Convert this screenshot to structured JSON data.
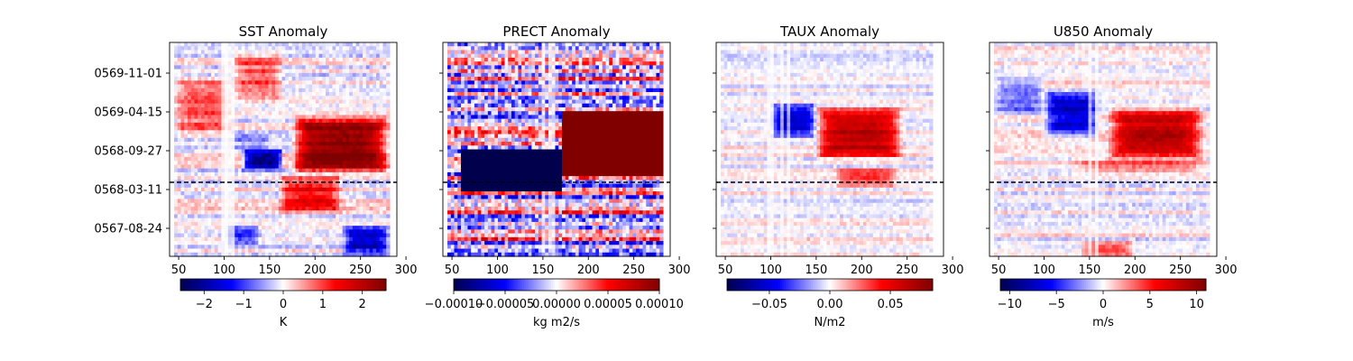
{
  "chart_data": [
    {
      "type": "heatmap",
      "title": "SST Anomaly",
      "xlim": [
        40,
        290
      ],
      "x_ticks": [
        50,
        100,
        150,
        200,
        250,
        300
      ],
      "y_ticks": [
        "0569-11-01",
        "0569-04-15",
        "0568-09-27",
        "0568-03-11",
        "0567-08-24"
      ],
      "y_tick_labels_visible": true,
      "data_x_range": [
        45,
        282
      ],
      "event_line_at": "0568-03-11",
      "colorbar": {
        "label": "K",
        "ticks": [
          "−2",
          "−1",
          "0",
          "1",
          "2"
        ],
        "range": [
          -2.6,
          2.6
        ]
      },
      "colormap": "seismic",
      "features": [
        {
          "x": [
            175,
            282
          ],
          "y": [
            0.38,
            0.66
          ],
          "value": 2.6
        },
        {
          "x": [
            160,
            230
          ],
          "y": [
            0.2,
            0.38
          ],
          "value": 1.4
        },
        {
          "x": [
            110,
            150
          ],
          "y": [
            0.5,
            0.58
          ],
          "value": -0.5
        },
        {
          "x": [
            110,
            165
          ],
          "y": [
            0.72,
            0.96
          ],
          "value": 0.9
        },
        {
          "x": [
            45,
            110
          ],
          "y": [
            0.55,
            0.85
          ],
          "value": 0.9
        },
        {
          "x": [
            120,
            165
          ],
          "y": [
            0.4,
            0.5
          ],
          "value": -2.4
        },
        {
          "x": [
            230,
            282
          ],
          "y": [
            0.0,
            0.15
          ],
          "value": -1.6
        },
        {
          "x": [
            100,
            140
          ],
          "y": [
            0.05,
            0.15
          ],
          "value": -1.0
        }
      ],
      "seed": 11,
      "noise": 0.35,
      "vstripes": [
        100,
        104,
        110
      ]
    },
    {
      "type": "heatmap",
      "title": "PRECT Anomaly",
      "xlim": [
        40,
        290
      ],
      "x_ticks": [
        50,
        100,
        150,
        200,
        250,
        300
      ],
      "y_ticks": [
        "0569-11-01",
        "0569-04-15",
        "0568-09-27",
        "0568-03-11",
        "0567-08-24"
      ],
      "y_tick_labels_visible": false,
      "data_x_range": [
        45,
        282
      ],
      "event_line_at": "0568-03-11",
      "colorbar": {
        "label": "kg m2/s",
        "ticks": [
          "−0.00010",
          "−0.00005",
          "0.00000",
          "0.00005",
          "0.00010"
        ],
        "range": [
          -0.0001,
          0.0001
        ]
      },
      "colormap": "seismic",
      "features": [
        {
          "x": [
            170,
            282
          ],
          "y": [
            0.38,
            0.68
          ],
          "value": 0.9
        },
        {
          "x": [
            60,
            170
          ],
          "y": [
            0.3,
            0.5
          ],
          "value": -0.9
        },
        {
          "x": [
            45,
            160
          ],
          "y": [
            0.55,
            0.95
          ],
          "value": 0.0
        }
      ],
      "seed": 23,
      "noise": 1.1,
      "vstripes": [
        150,
        160
      ]
    },
    {
      "type": "heatmap",
      "title": "TAUX Anomaly",
      "xlim": [
        40,
        290
      ],
      "x_ticks": [
        50,
        100,
        150,
        200,
        250,
        300
      ],
      "y_ticks": [
        "0569-11-01",
        "0569-04-15",
        "0568-09-27",
        "0568-03-11",
        "0567-08-24"
      ],
      "y_tick_labels_visible": false,
      "data_x_range": [
        45,
        278
      ],
      "event_line_at": "0568-03-11",
      "colorbar": {
        "label": "N/m2",
        "ticks": [
          "−0.05",
          "0.00",
          "0.05"
        ],
        "range": [
          -0.085,
          0.085
        ]
      },
      "colormap": "seismic",
      "features": [
        {
          "x": [
            150,
            245
          ],
          "y": [
            0.45,
            0.7
          ],
          "value": 0.065
        },
        {
          "x": [
            100,
            150
          ],
          "y": [
            0.55,
            0.72
          ],
          "value": -0.05
        },
        {
          "x": [
            170,
            240
          ],
          "y": [
            0.32,
            0.42
          ],
          "value": 0.03
        }
      ],
      "seed": 37,
      "noise": 0.25,
      "vstripes": [
        100,
        112,
        120
      ]
    },
    {
      "type": "heatmap",
      "title": "U850 Anomaly",
      "xlim": [
        40,
        290
      ],
      "x_ticks": [
        50,
        100,
        150,
        200,
        250,
        300
      ],
      "y_ticks": [
        "0569-11-01",
        "0569-04-15",
        "0568-09-27",
        "0568-03-11",
        "0567-08-24"
      ],
      "y_tick_labels_visible": false,
      "data_x_range": [
        45,
        282
      ],
      "event_line_at": "0568-03-11",
      "colorbar": {
        "label": "m/s",
        "ticks": [
          "−10",
          "−5",
          "0",
          "5",
          "10"
        ],
        "range": [
          -11,
          11
        ]
      },
      "colormap": "seismic",
      "features": [
        {
          "x": [
            170,
            275
          ],
          "y": [
            0.45,
            0.7
          ],
          "value": 8.0
        },
        {
          "x": [
            100,
            160
          ],
          "y": [
            0.55,
            0.78
          ],
          "value": -7.0
        },
        {
          "x": [
            45,
            100
          ],
          "y": [
            0.65,
            0.85
          ],
          "value": -3.0
        },
        {
          "x": [
            130,
            280
          ],
          "y": [
            0.38,
            0.46
          ],
          "value": 3.0
        },
        {
          "x": [
            140,
            200
          ],
          "y": [
            0.0,
            0.07
          ],
          "value": 4.0
        }
      ],
      "seed": 51,
      "noise": 0.3,
      "vstripes": [
        150,
        158
      ]
    }
  ]
}
